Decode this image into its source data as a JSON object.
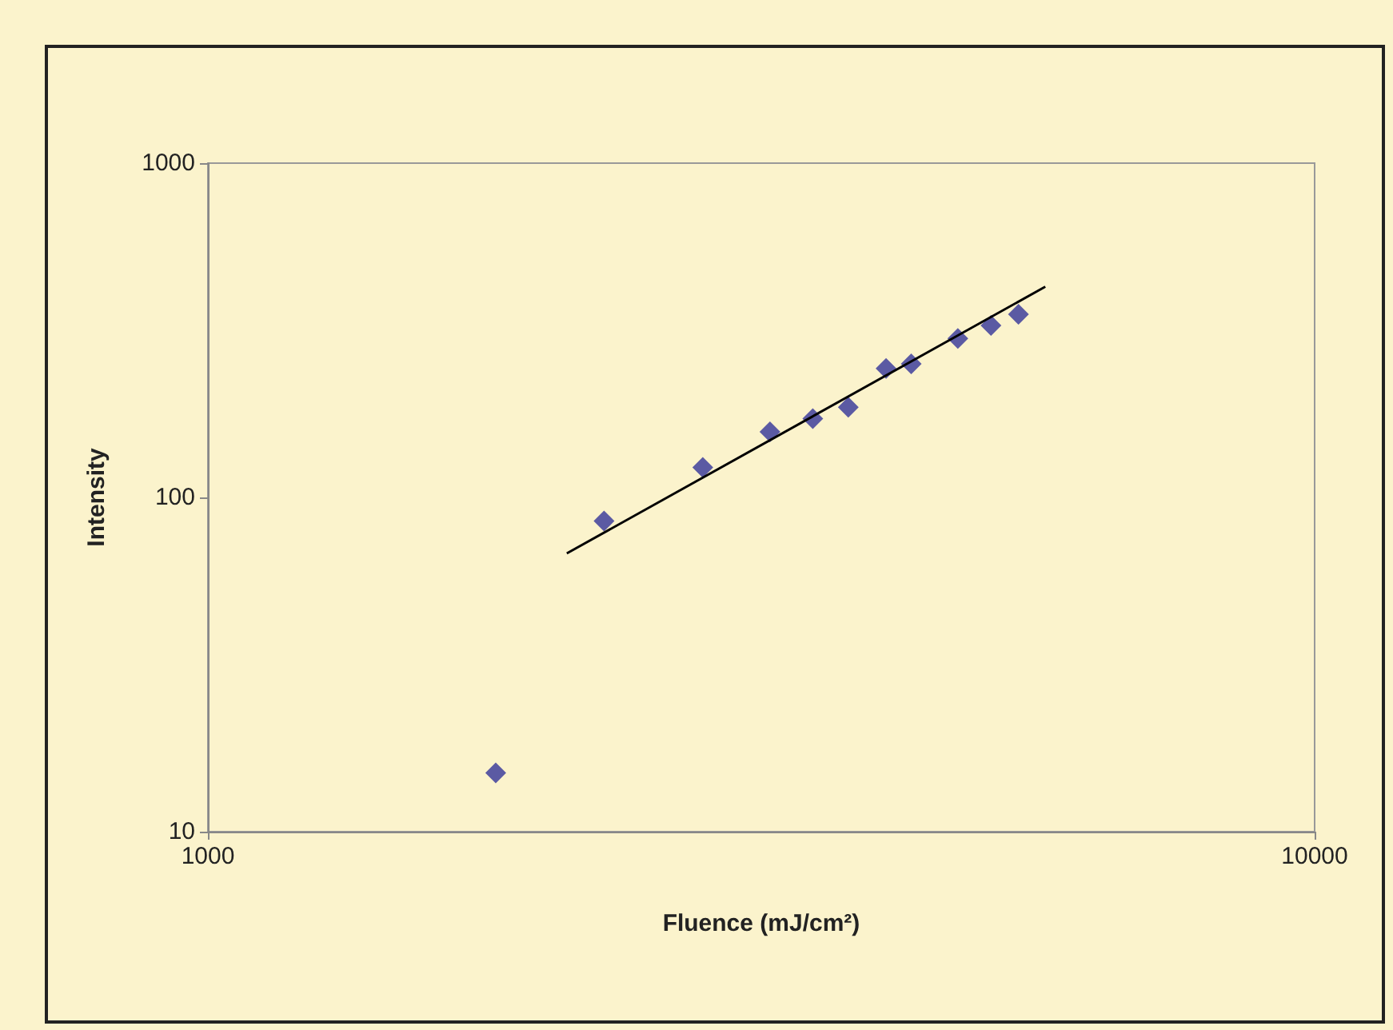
{
  "chart_data": {
    "type": "scatter",
    "xlabel": "Fluence (mJ/cm²)",
    "ylabel": "Intensity",
    "log": "xy",
    "marker": "diamond",
    "xlim": [
      1000,
      10000
    ],
    "xticks": [
      1000,
      10000
    ],
    "ylim": [
      10,
      1000
    ],
    "yticks": [
      10,
      100,
      1000
    ],
    "series": [
      {
        "color": "#333399",
        "x": [
          1820,
          2280,
          2800,
          3220,
          3520,
          3790,
          4100,
          4320,
          4760,
          5100,
          5400
        ],
        "values": [
          15,
          85,
          123,
          157,
          172,
          186,
          243,
          251,
          299,
          327,
          353
        ]
      },
      {
        "type": "line",
        "marker": "none",
        "color": "#000000",
        "x": [
          2110,
          5710
        ],
        "values": [
          68,
          427
        ]
      }
    ]
  }
}
